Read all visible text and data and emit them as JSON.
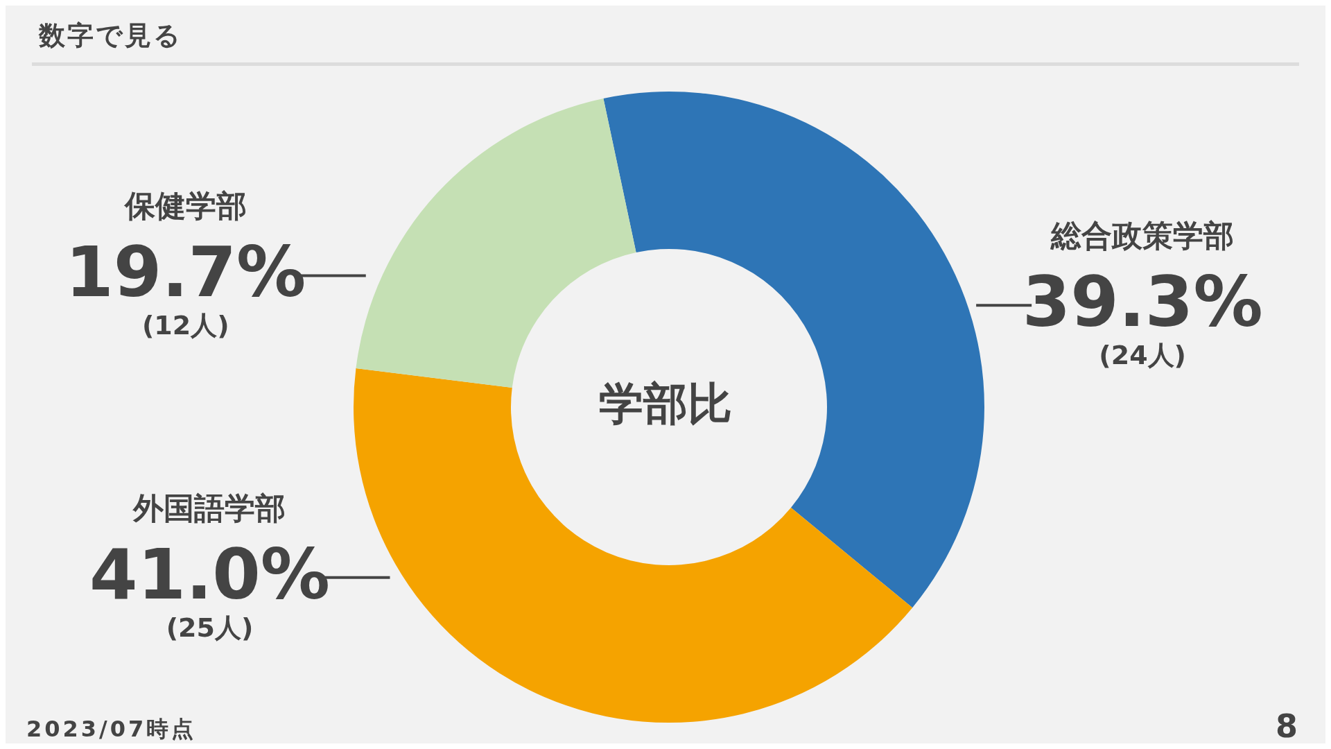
{
  "chart_data": {
    "type": "donut",
    "title": "数字で見る",
    "subtitle": "学部比",
    "categories": [
      "総合政策学部",
      "外国語学部",
      "保健学部"
    ],
    "values": [
      39.3,
      41.0,
      19.7
    ],
    "colors": [
      "#2e75b6",
      "#f5a300",
      "#c5e0b4"
    ],
    "value_labels": [
      "39.3%\n(24人)",
      "41.0%\n(25人)",
      "19.7%\n(12人)"
    ],
    "annotations": [
      "2023/07時点",
      "8"
    ]
  }
}
